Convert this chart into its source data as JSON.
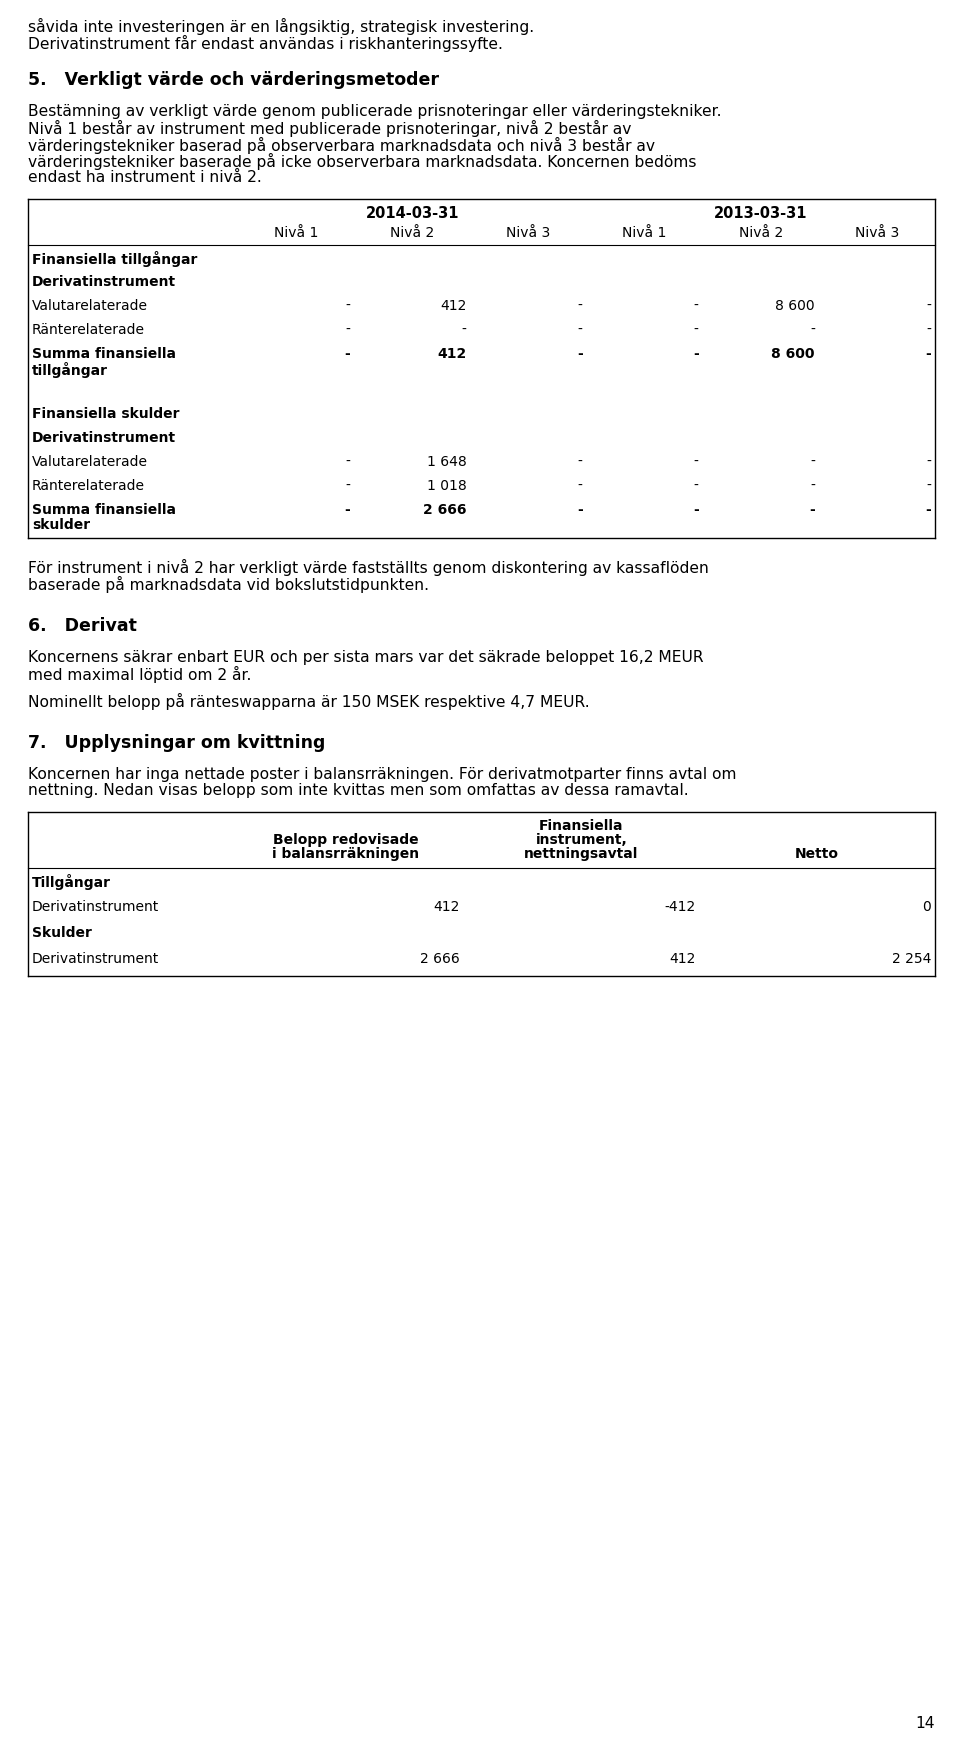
{
  "bg_color": "#ffffff",
  "text_color": "#000000",
  "intro_lines": [
    "såvida inte investeringen är en långsiktig, strategisk investering.",
    "Derivatinstrument får endast användas i riskhanteringssyfte."
  ],
  "section5_title": "5.   Verkligt värde och värderingsmetoder",
  "section5_body": [
    "Bestämning av verkligt värde genom publicerade prisnoteringar eller värderingstekniker.",
    "Nivå 1 består av instrument med publicerade prisnoteringar, nivå 2 består av",
    "värderingstekniker baserad på observerbara marknadsdata och nivå 3 består av",
    "värderingstekniker baserade på icke observerbara marknadsdata. Koncernen bedöms",
    "endast ha instrument i nivå 2."
  ],
  "table1_date1": "2014-03-31",
  "table1_date2": "2013-03-31",
  "table1_subheaders": [
    "Nivå 1",
    "Nivå 2",
    "Nivå 3",
    "Nivå 1",
    "Nivå 2",
    "Nivå 3"
  ],
  "table1_rows": [
    {
      "label": "Finansiella tillgångar",
      "bold": true,
      "values": [
        "",
        "",
        "",
        "",
        "",
        ""
      ],
      "extra_space_before": false
    },
    {
      "label": "Derivatinstrument",
      "bold": true,
      "values": [
        "",
        "",
        "",
        "",
        "",
        ""
      ],
      "extra_space_before": false
    },
    {
      "label": "Valutarelaterade",
      "bold": false,
      "values": [
        "-",
        "412",
        "-",
        "-",
        "8 600",
        "-"
      ],
      "extra_space_before": false
    },
    {
      "label": "Ränterelaterade",
      "bold": false,
      "values": [
        "-",
        "-",
        "-",
        "-",
        "-",
        "-"
      ],
      "extra_space_before": false
    },
    {
      "label": "Summa finansiella\ntillgångar",
      "bold": true,
      "values": [
        "-",
        "412",
        "-",
        "-",
        "8 600",
        "-"
      ],
      "extra_space_before": false
    },
    {
      "label": "",
      "bold": false,
      "values": [
        "",
        "",
        "",
        "",
        "",
        ""
      ],
      "extra_space_before": false
    },
    {
      "label": "Finansiella skulder",
      "bold": true,
      "values": [
        "",
        "",
        "",
        "",
        "",
        ""
      ],
      "extra_space_before": false
    },
    {
      "label": "Derivatinstrument",
      "bold": true,
      "values": [
        "",
        "",
        "",
        "",
        "",
        ""
      ],
      "extra_space_before": false
    },
    {
      "label": "Valutarelaterade",
      "bold": false,
      "values": [
        "-",
        "1 648",
        "-",
        "-",
        "-",
        "-"
      ],
      "extra_space_before": false
    },
    {
      "label": "Ränterelaterade",
      "bold": false,
      "values": [
        "-",
        "1 018",
        "-",
        "-",
        "-",
        "-"
      ],
      "extra_space_before": false
    },
    {
      "label": "Summa finansiella\nskulder",
      "bold": true,
      "values": [
        "-",
        "2 666",
        "-",
        "-",
        "-",
        "-"
      ],
      "extra_space_before": false
    }
  ],
  "after_table1": [
    "För instrument i nivå 2 har verkligt värde fastställts genom diskontering av kassaflöden",
    "baserade på marknadsdata vid bokslutstidpunkten."
  ],
  "section6_title": "6.   Derivat",
  "section6_body": [
    "Koncernens säkrar enbart EUR och per sista mars var det säkrade beloppet 16,2 MEUR",
    "med maximal löptid om 2 år.",
    "",
    "Nominellt belopp på ränteswapparna är 150 MSEK respektive 4,7 MEUR."
  ],
  "section7_title": "7.   Upplysningar om kvittning",
  "section7_body": [
    "Koncernen har inga nettade poster i balansrräkningen. För derivatmotparter finns avtal om",
    "nettning. Nedan visas belopp som inte kvittas men som omfattas av dessa ramavtal."
  ],
  "table2_headers": [
    "",
    "Belopp redovisade\ni balansrräkningen",
    "Finansiella\ninstrument,\nnettningsavtal",
    "Netto"
  ],
  "table2_rows": [
    {
      "label": "Tillgångar",
      "bold": true,
      "values": [
        "",
        "",
        ""
      ]
    },
    {
      "label": "Derivatinstrument",
      "bold": false,
      "values": [
        "412",
        "-412",
        "0"
      ]
    },
    {
      "label": "Skulder",
      "bold": true,
      "values": [
        "",
        "",
        ""
      ]
    },
    {
      "label": "Derivatinstrument",
      "bold": false,
      "values": [
        "2 666",
        "412",
        "2 254"
      ]
    }
  ],
  "page_number": "14"
}
